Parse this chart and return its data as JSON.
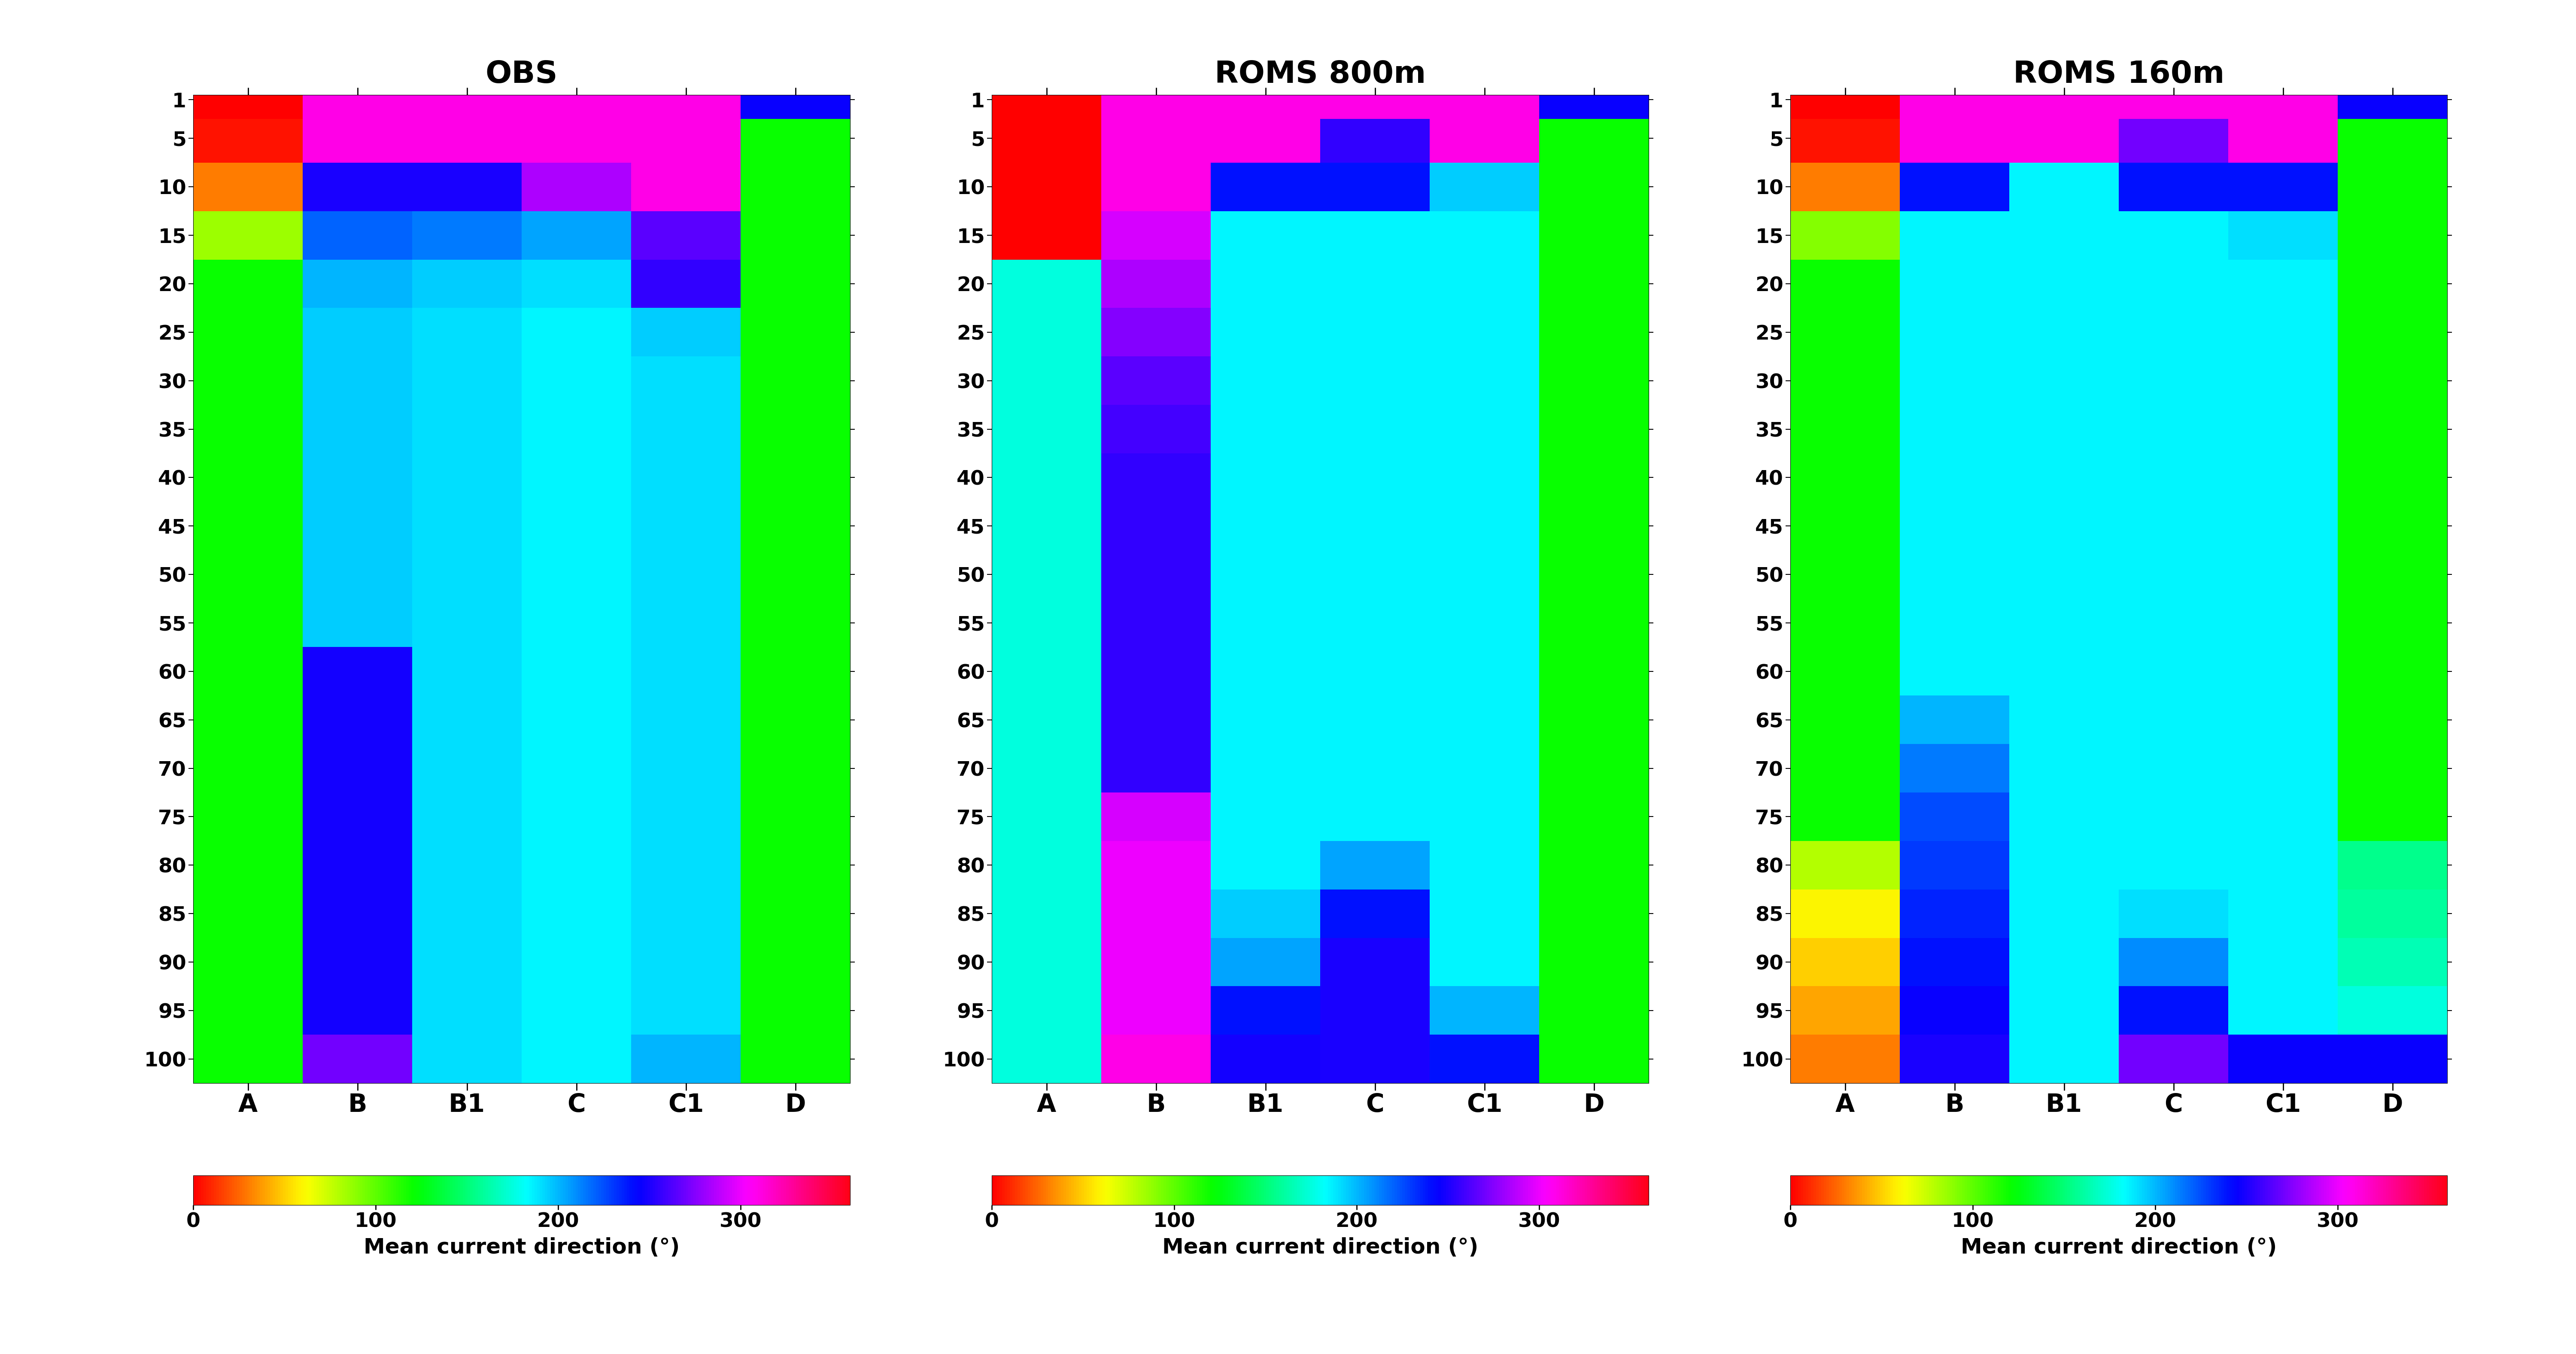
{
  "titles": [
    "OBS",
    "ROMS 800m",
    "ROMS 160m"
  ],
  "columns": [
    "A",
    "B",
    "B1",
    "C",
    "C1",
    "D"
  ],
  "depths": [
    1,
    5,
    10,
    15,
    20,
    25,
    30,
    35,
    40,
    45,
    50,
    55,
    60,
    65,
    70,
    75,
    80,
    85,
    90,
    95,
    100
  ],
  "vmin": 0,
  "vmax": 360,
  "colorbar_label": "Mean current direction (°)",
  "colorbar_ticks": [
    0,
    100,
    200,
    300
  ],
  "obs": [
    [
      0,
      310,
      310,
      310,
      310,
      245
    ],
    [
      5,
      310,
      310,
      310,
      310,
      120
    ],
    [
      30,
      250,
      250,
      285,
      310,
      120
    ],
    [
      85,
      220,
      215,
      205,
      265,
      120
    ],
    [
      120,
      200,
      195,
      190,
      255,
      120
    ],
    [
      120,
      195,
      190,
      185,
      195,
      120
    ],
    [
      120,
      195,
      190,
      185,
      190,
      120
    ],
    [
      120,
      195,
      190,
      185,
      190,
      120
    ],
    [
      120,
      195,
      190,
      185,
      190,
      120
    ],
    [
      120,
      195,
      190,
      185,
      190,
      120
    ],
    [
      120,
      195,
      190,
      185,
      190,
      120
    ],
    [
      120,
      195,
      190,
      185,
      190,
      120
    ],
    [
      120,
      248,
      190,
      185,
      190,
      120
    ],
    [
      120,
      248,
      190,
      185,
      190,
      120
    ],
    [
      120,
      248,
      190,
      185,
      190,
      120
    ],
    [
      120,
      248,
      190,
      185,
      190,
      120
    ],
    [
      120,
      248,
      190,
      185,
      190,
      120
    ],
    [
      120,
      248,
      190,
      185,
      190,
      120
    ],
    [
      120,
      248,
      190,
      185,
      190,
      120
    ],
    [
      120,
      248,
      190,
      185,
      190,
      120
    ],
    [
      120,
      270,
      190,
      185,
      200,
      120
    ]
  ],
  "roms800": [
    [
      0,
      310,
      310,
      310,
      310,
      245
    ],
    [
      0,
      310,
      310,
      255,
      310,
      120
    ],
    [
      0,
      310,
      240,
      240,
      195,
      120
    ],
    [
      0,
      295,
      185,
      185,
      185,
      120
    ],
    [
      175,
      285,
      185,
      185,
      185,
      120
    ],
    [
      175,
      275,
      185,
      185,
      185,
      120
    ],
    [
      175,
      265,
      185,
      185,
      185,
      120
    ],
    [
      175,
      260,
      185,
      185,
      185,
      120
    ],
    [
      175,
      255,
      185,
      185,
      185,
      120
    ],
    [
      175,
      255,
      185,
      185,
      185,
      120
    ],
    [
      175,
      255,
      185,
      185,
      185,
      120
    ],
    [
      175,
      255,
      185,
      185,
      185,
      120
    ],
    [
      175,
      255,
      185,
      185,
      185,
      120
    ],
    [
      175,
      255,
      185,
      185,
      185,
      120
    ],
    [
      175,
      255,
      185,
      185,
      185,
      120
    ],
    [
      175,
      295,
      185,
      185,
      185,
      120
    ],
    [
      175,
      300,
      185,
      205,
      185,
      120
    ],
    [
      175,
      300,
      195,
      240,
      185,
      120
    ],
    [
      175,
      300,
      205,
      250,
      185,
      120
    ],
    [
      175,
      300,
      240,
      250,
      200,
      120
    ],
    [
      175,
      310,
      248,
      250,
      240,
      120
    ]
  ],
  "roms160": [
    [
      0,
      310,
      310,
      310,
      310,
      245
    ],
    [
      5,
      310,
      310,
      270,
      310,
      120
    ],
    [
      30,
      240,
      185,
      240,
      240,
      120
    ],
    [
      90,
      185,
      185,
      185,
      190,
      120
    ],
    [
      120,
      185,
      185,
      185,
      185,
      120
    ],
    [
      120,
      185,
      185,
      185,
      185,
      120
    ],
    [
      120,
      185,
      185,
      185,
      185,
      120
    ],
    [
      120,
      185,
      185,
      185,
      185,
      120
    ],
    [
      120,
      185,
      185,
      185,
      185,
      120
    ],
    [
      120,
      185,
      185,
      185,
      185,
      120
    ],
    [
      120,
      185,
      185,
      185,
      185,
      120
    ],
    [
      120,
      185,
      185,
      185,
      185,
      120
    ],
    [
      120,
      185,
      185,
      185,
      185,
      120
    ],
    [
      120,
      200,
      185,
      185,
      185,
      120
    ],
    [
      120,
      215,
      185,
      185,
      185,
      120
    ],
    [
      120,
      225,
      185,
      185,
      185,
      120
    ],
    [
      80,
      230,
      185,
      185,
      185,
      155
    ],
    [
      60,
      235,
      185,
      190,
      185,
      160
    ],
    [
      50,
      240,
      185,
      210,
      185,
      165
    ],
    [
      40,
      245,
      185,
      240,
      185,
      175
    ],
    [
      30,
      250,
      185,
      270,
      245,
      245
    ]
  ]
}
